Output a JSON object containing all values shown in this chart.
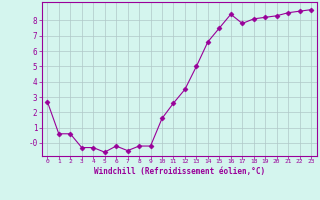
{
  "x": [
    0,
    1,
    2,
    3,
    4,
    5,
    6,
    7,
    8,
    9,
    10,
    11,
    12,
    13,
    14,
    15,
    16,
    17,
    18,
    19,
    20,
    21,
    22,
    23
  ],
  "y": [
    2.7,
    0.6,
    0.6,
    -0.3,
    -0.3,
    -0.6,
    -0.2,
    -0.5,
    -0.2,
    -0.2,
    1.6,
    2.6,
    3.5,
    5.0,
    6.6,
    7.5,
    8.4,
    7.8,
    8.1,
    8.2,
    8.3,
    8.5,
    8.6,
    8.7
  ],
  "line_color": "#990099",
  "marker": "D",
  "marker_size": 2.5,
  "background_color": "#d4f5ee",
  "grid_color": "#b0c8c8",
  "xlabel": "Windchill (Refroidissement éolien,°C)",
  "xlabel_color": "#990099",
  "tick_color": "#990099",
  "spine_color": "#990099",
  "xlim": [
    -0.5,
    23.5
  ],
  "ylim": [
    -0.85,
    9.2
  ],
  "ytick_vals": [
    8,
    7,
    6,
    5,
    4,
    3,
    2,
    1,
    0
  ],
  "ytick_labels": [
    "8",
    "7",
    "6",
    "5",
    "4",
    "3",
    "2",
    "1",
    "-0"
  ],
  "xticks": [
    0,
    1,
    2,
    3,
    4,
    5,
    6,
    7,
    8,
    9,
    10,
    11,
    12,
    13,
    14,
    15,
    16,
    17,
    18,
    19,
    20,
    21,
    22,
    23
  ]
}
